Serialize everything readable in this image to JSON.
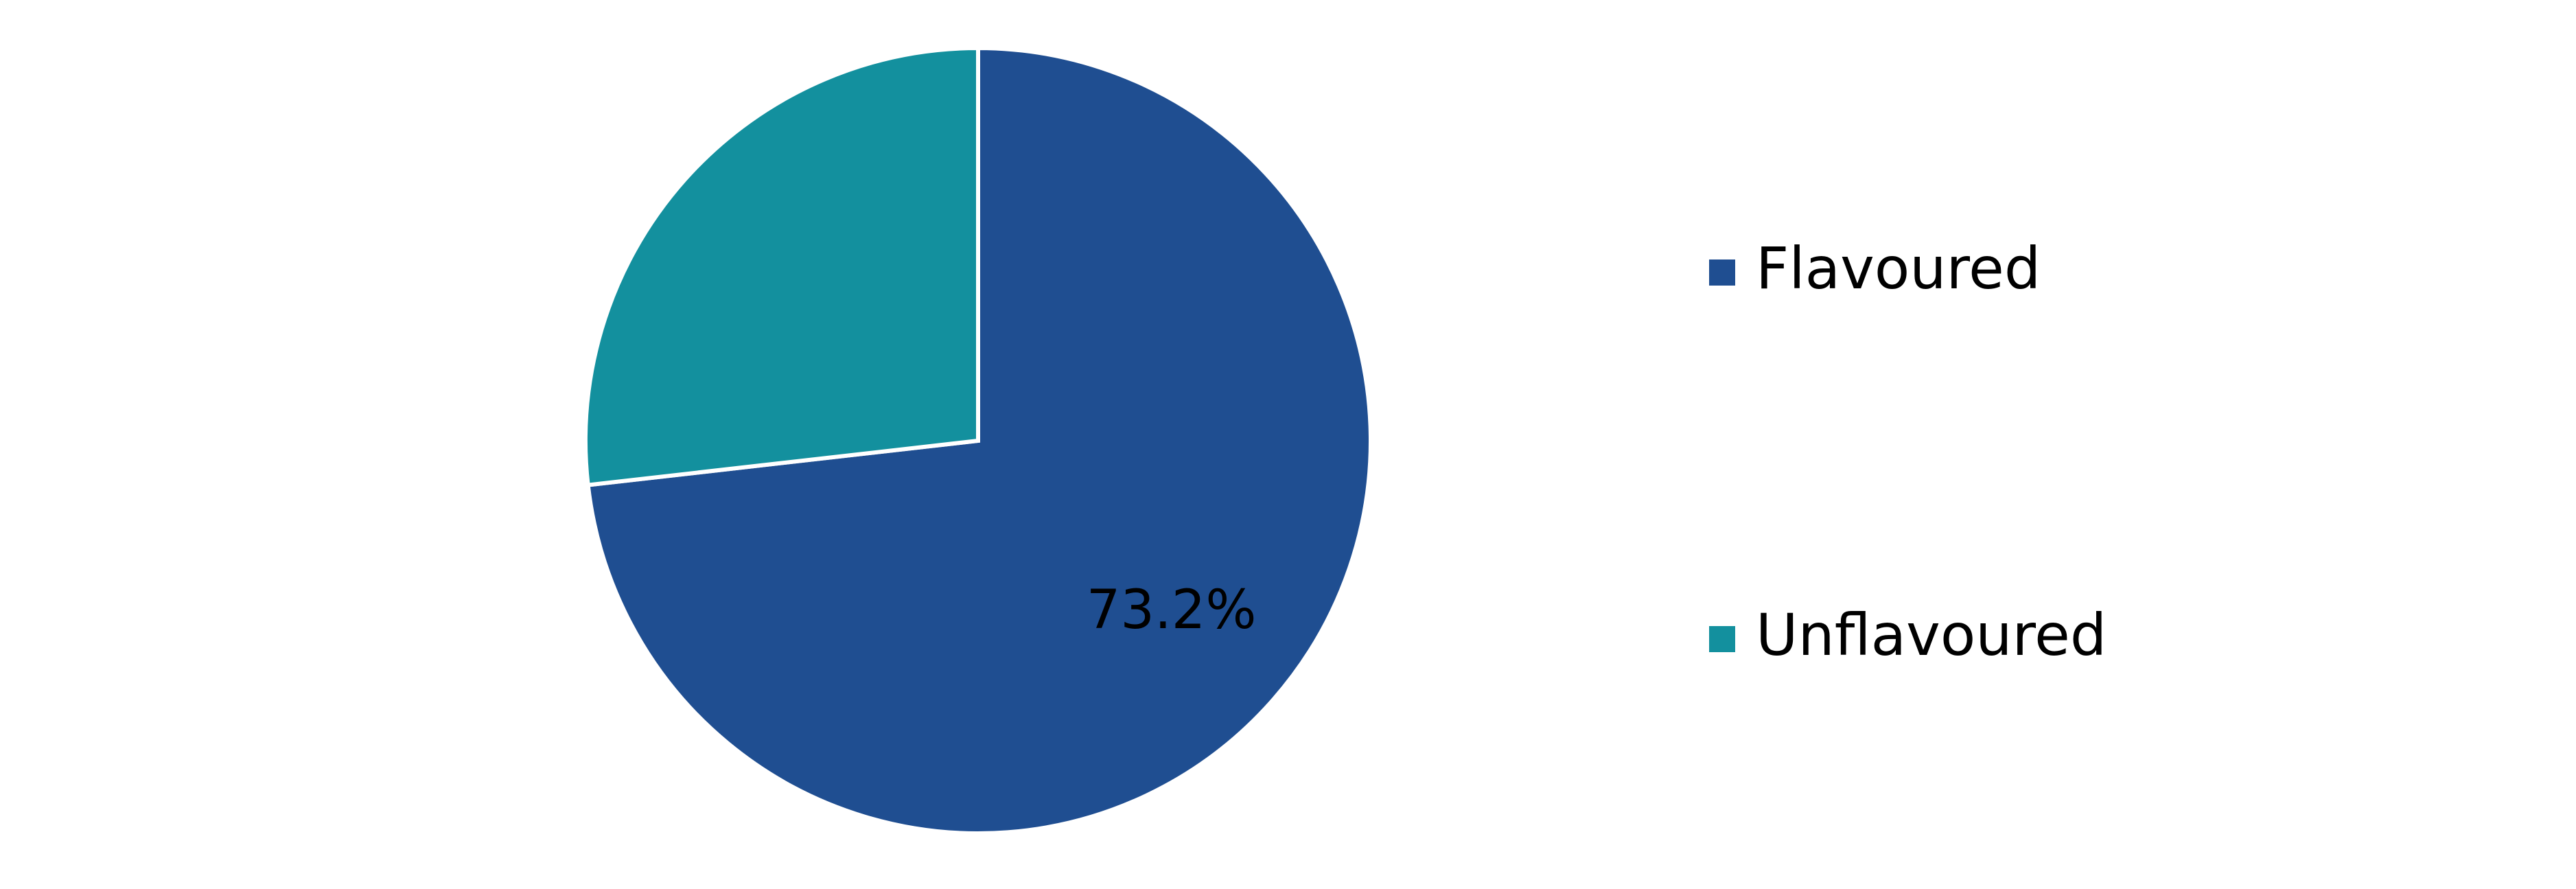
{
  "chart_data": {
    "type": "pie",
    "title": "",
    "start_angle_deg": 0,
    "direction": "clockwise",
    "legend_position": "right",
    "slices": [
      {
        "name": "Flavoured",
        "value": 73.2,
        "label": "73.2%",
        "color": "#1f4e91"
      },
      {
        "name": "Unflavoured",
        "value": 26.8,
        "label": "",
        "color": "#13909e"
      }
    ]
  }
}
